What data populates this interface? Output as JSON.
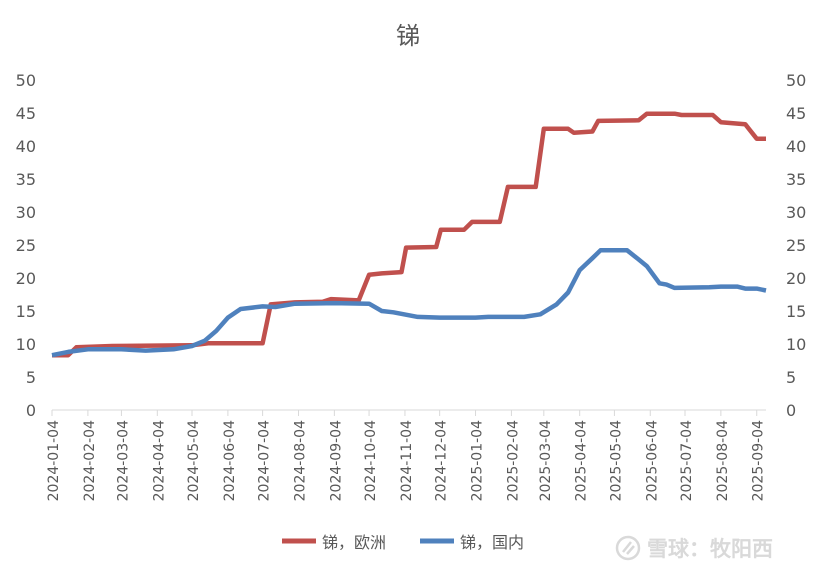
{
  "chart_data": {
    "type": "line",
    "title": "锑",
    "xlabel": "",
    "ylabel": "",
    "ylim": [
      0,
      50
    ],
    "yticks": [
      0,
      5,
      10,
      15,
      20,
      25,
      30,
      35,
      40,
      45,
      50
    ],
    "y2lim": [
      0,
      50
    ],
    "y2ticks": [
      0,
      5,
      10,
      15,
      20,
      25,
      30,
      35,
      40,
      45,
      50
    ],
    "xlim": [
      "2024-01-04",
      "2025-09-12"
    ],
    "xticks": [
      "2024-01-04",
      "2024-02-04",
      "2024-03-04",
      "2024-04-04",
      "2024-05-04",
      "2024-06-04",
      "2024-07-04",
      "2024-08-04",
      "2024-09-04",
      "2024-10-04",
      "2024-11-04",
      "2024-12-04",
      "2025-01-04",
      "2025-02-04",
      "2025-03-04",
      "2025-04-04",
      "2025-05-04",
      "2025-06-04",
      "2025-07-04",
      "2025-08-04",
      "2025-09-04"
    ],
    "grid": false,
    "legend": "bottom",
    "series": [
      {
        "name": "锑，欧洲",
        "color": "#c0504d",
        "points": [
          [
            "2024-01-04",
            8.3
          ],
          [
            "2024-01-18",
            8.3
          ],
          [
            "2024-01-25",
            9.5
          ],
          [
            "2024-02-25",
            9.7
          ],
          [
            "2024-05-04",
            9.8
          ],
          [
            "2024-05-18",
            10.1
          ],
          [
            "2024-07-04",
            10.1
          ],
          [
            "2024-07-11",
            16.0
          ],
          [
            "2024-08-01",
            16.3
          ],
          [
            "2024-08-25",
            16.4
          ],
          [
            "2024-09-01",
            16.8
          ],
          [
            "2024-09-25",
            16.6
          ],
          [
            "2024-10-04",
            20.5
          ],
          [
            "2024-10-15",
            20.7
          ],
          [
            "2024-11-01",
            20.9
          ],
          [
            "2024-11-05",
            24.6
          ],
          [
            "2024-12-01",
            24.7
          ],
          [
            "2024-12-05",
            27.3
          ],
          [
            "2024-12-25",
            27.3
          ],
          [
            "2025-01-01",
            28.5
          ],
          [
            "2025-01-25",
            28.5
          ],
          [
            "2025-02-01",
            33.8
          ],
          [
            "2025-02-25",
            33.8
          ],
          [
            "2025-03-04",
            42.6
          ],
          [
            "2025-03-25",
            42.6
          ],
          [
            "2025-03-30",
            42.0
          ],
          [
            "2025-04-15",
            42.2
          ],
          [
            "2025-04-20",
            43.8
          ],
          [
            "2025-05-25",
            43.9
          ],
          [
            "2025-06-01",
            44.9
          ],
          [
            "2025-06-25",
            44.9
          ],
          [
            "2025-07-01",
            44.7
          ],
          [
            "2025-07-28",
            44.7
          ],
          [
            "2025-08-04",
            43.6
          ],
          [
            "2025-08-25",
            43.3
          ],
          [
            "2025-09-04",
            41.1
          ],
          [
            "2025-09-12",
            41.1
          ]
        ]
      },
      {
        "name": "锑，国内",
        "color": "#4f81bd",
        "points": [
          [
            "2024-01-04",
            8.3
          ],
          [
            "2024-01-18",
            8.8
          ],
          [
            "2024-02-04",
            9.2
          ],
          [
            "2024-03-04",
            9.2
          ],
          [
            "2024-03-25",
            9.0
          ],
          [
            "2024-04-18",
            9.2
          ],
          [
            "2024-05-04",
            9.7
          ],
          [
            "2024-05-15",
            10.5
          ],
          [
            "2024-05-25",
            12.0
          ],
          [
            "2024-06-04",
            14.0
          ],
          [
            "2024-06-15",
            15.3
          ],
          [
            "2024-07-04",
            15.7
          ],
          [
            "2024-07-15",
            15.6
          ],
          [
            "2024-08-01",
            16.1
          ],
          [
            "2024-09-04",
            16.2
          ],
          [
            "2024-10-04",
            16.1
          ],
          [
            "2024-10-15",
            15.0
          ],
          [
            "2024-10-25",
            14.8
          ],
          [
            "2024-11-15",
            14.1
          ],
          [
            "2024-12-04",
            14.0
          ],
          [
            "2025-01-04",
            14.0
          ],
          [
            "2025-01-15",
            14.1
          ],
          [
            "2025-02-15",
            14.1
          ],
          [
            "2025-03-01",
            14.5
          ],
          [
            "2025-03-15",
            16.0
          ],
          [
            "2025-03-25",
            17.8
          ],
          [
            "2025-04-04",
            21.2
          ],
          [
            "2025-04-15",
            23.0
          ],
          [
            "2025-04-22",
            24.2
          ],
          [
            "2025-05-15",
            24.2
          ],
          [
            "2025-05-25",
            22.8
          ],
          [
            "2025-06-01",
            21.8
          ],
          [
            "2025-06-12",
            19.2
          ],
          [
            "2025-06-18",
            19.0
          ],
          [
            "2025-06-25",
            18.5
          ],
          [
            "2025-07-25",
            18.6
          ],
          [
            "2025-08-04",
            18.7
          ],
          [
            "2025-08-18",
            18.7
          ],
          [
            "2025-08-25",
            18.4
          ],
          [
            "2025-09-04",
            18.4
          ],
          [
            "2025-09-12",
            18.1
          ]
        ]
      }
    ]
  },
  "watermark": "雪球：牧阳西"
}
